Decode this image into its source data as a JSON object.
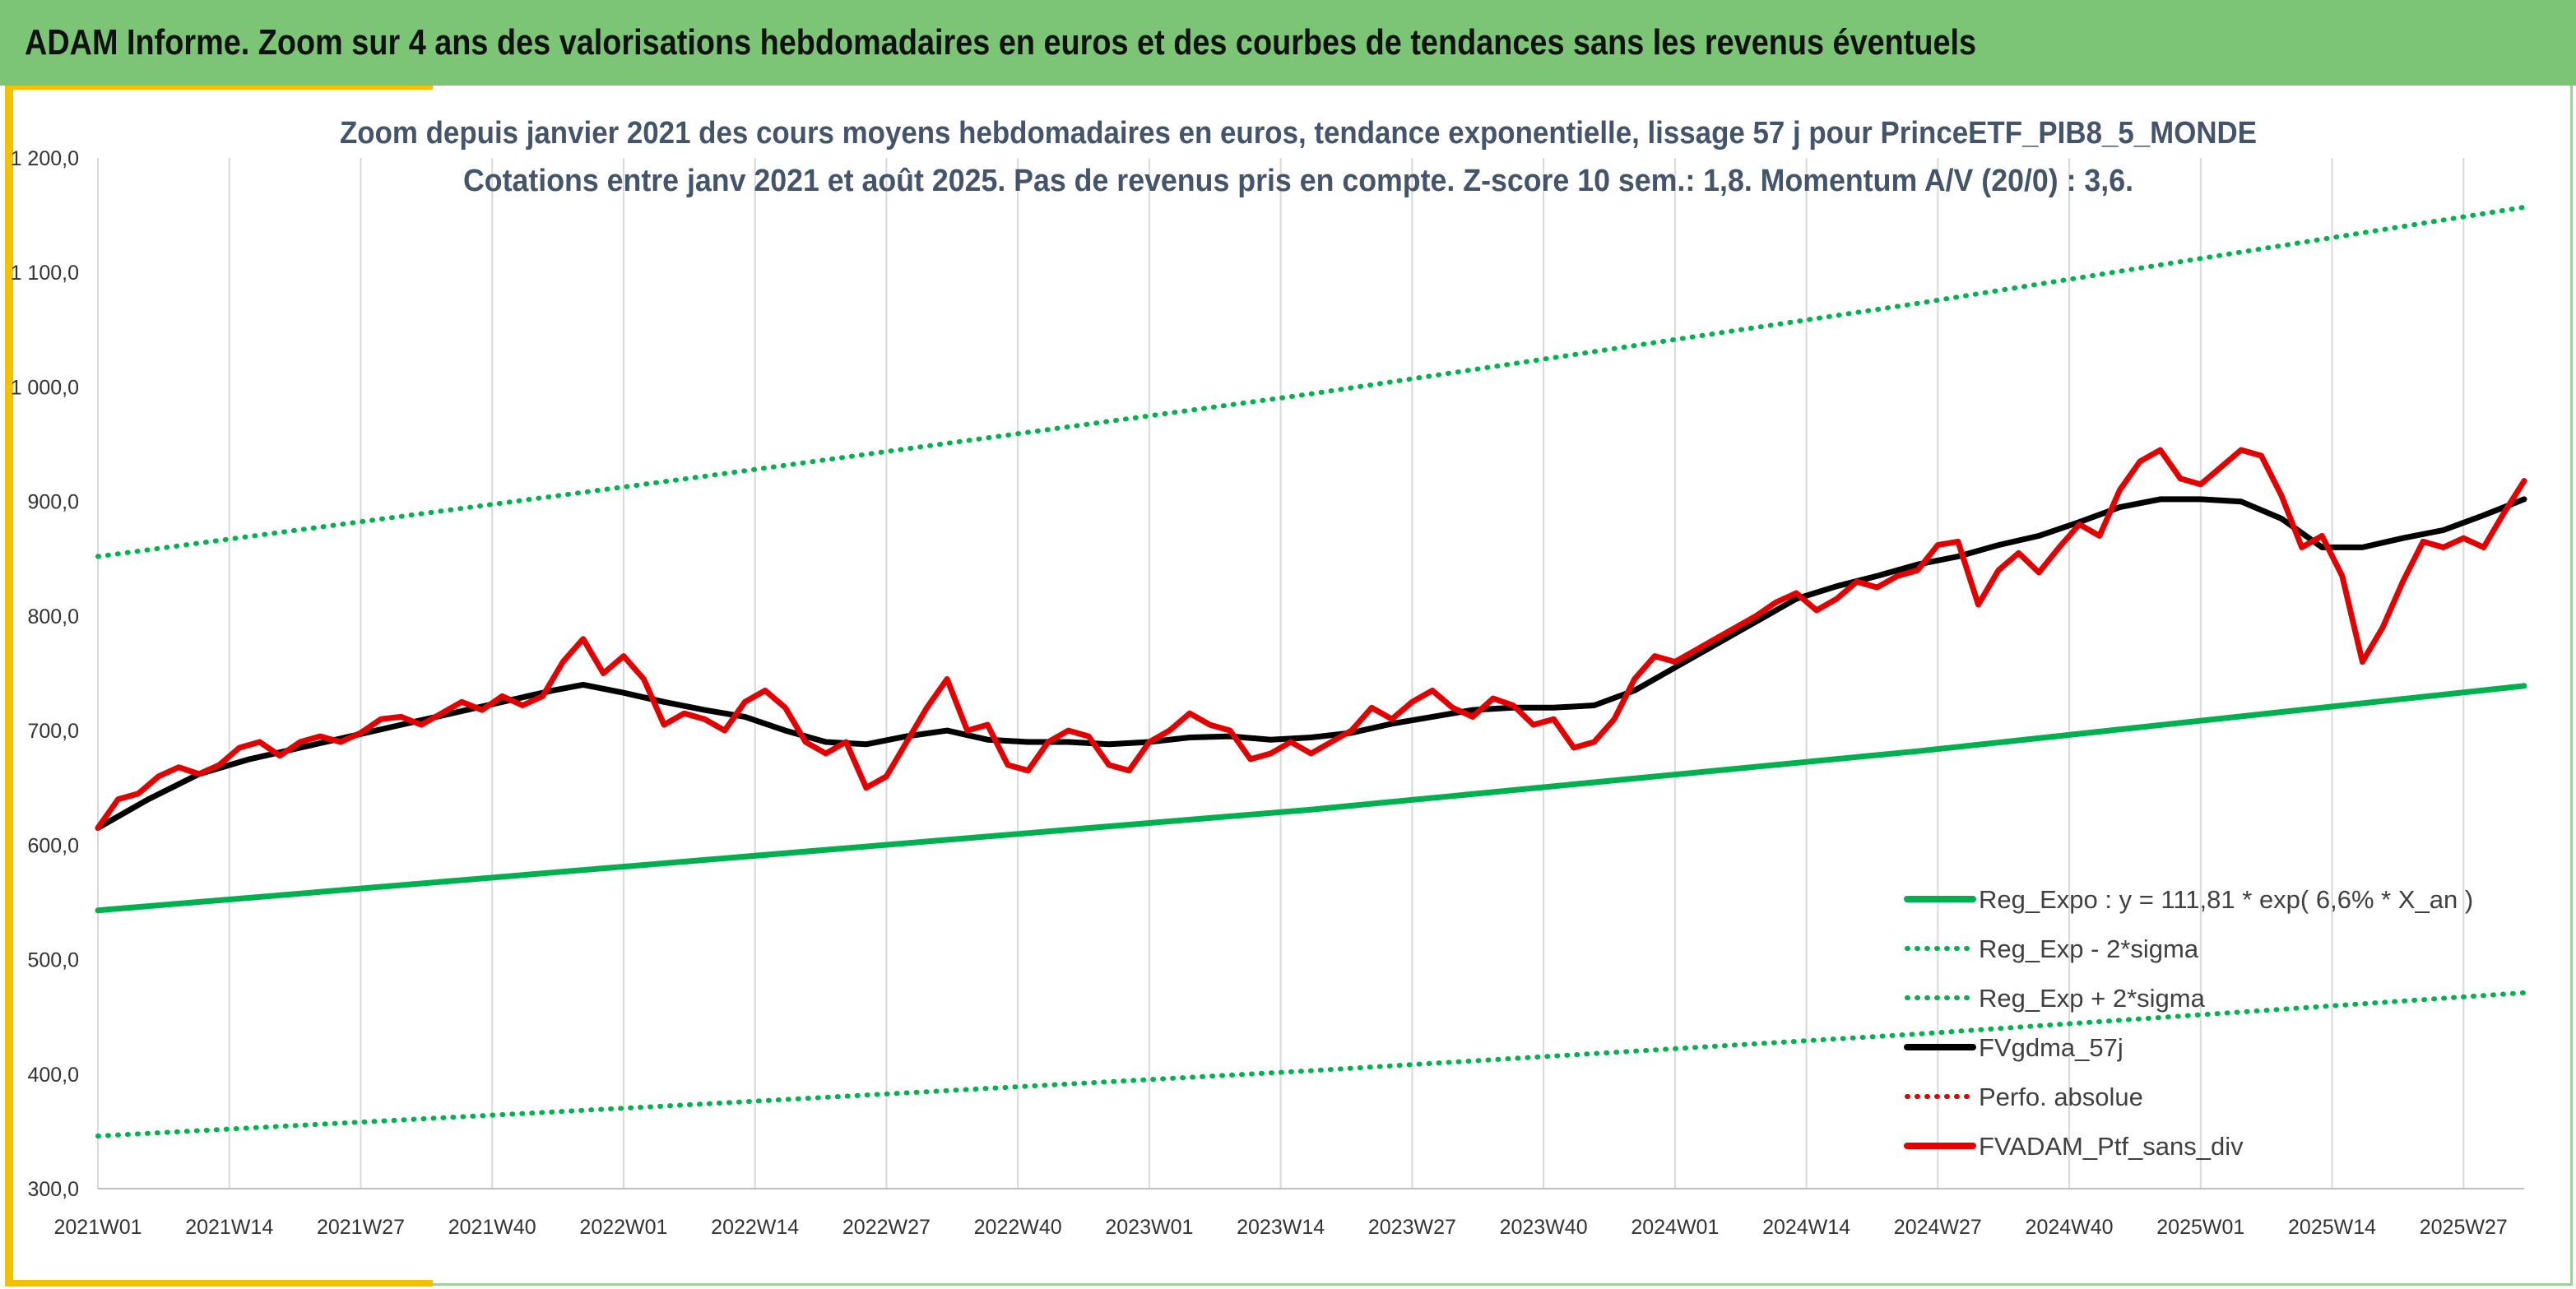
{
  "banner": {
    "title": "ADAM Informe. Zoom sur 4 ans des valorisations hebdomadaires en euros et des courbes de tendances sans les revenus éventuels",
    "color": "#7cc576",
    "accent_color": "#f2c200"
  },
  "chart_data": {
    "type": "line",
    "title_line1": "Zoom depuis janvier 2021 des cours moyens hebdomadaires en euros, tendance exponentielle, lissage 57 j pour PrinceETF_PIB8_5_MONDE",
    "title_line2": "Cotations entre janv 2021 et août 2025. Pas de revenus pris en compte. Z-score 10 sem.: 1,8. Momentum A/V (20/0) : 3,6.",
    "xlabel": "",
    "ylabel": "",
    "ylim": [
      300,
      1200
    ],
    "y_ticks": [
      "300,0",
      "400,0",
      "500,0",
      "600,0",
      "700,0",
      "800,0",
      "900,0",
      "1 000,0",
      "1 100,0",
      "1 200,0"
    ],
    "x_tick_labels": [
      "2021W01",
      "2021W14",
      "2021W27",
      "2021W40",
      "2022W01",
      "2022W14",
      "2022W27",
      "2022W40",
      "2023W01",
      "2023W14",
      "2023W27",
      "2023W40",
      "2024W01",
      "2024W14",
      "2024W27",
      "2024W40",
      "2025W01",
      "2025W14",
      "2025W27"
    ],
    "x_tick_week_index": [
      0,
      13,
      26,
      39,
      52,
      65,
      78,
      91,
      104,
      117,
      130,
      143,
      156,
      169,
      182,
      195,
      208,
      221,
      234
    ],
    "x_range_weeks": [
      0,
      240
    ],
    "grid": "vertical",
    "legend_position": "bottom-right",
    "series": [
      {
        "name": "Reg_Expo : y = 111,81 * exp( 6,6% *  X_an )",
        "style": "solid-thick",
        "color": "#00b050",
        "points": [
          [
            0,
            543
          ],
          [
            60,
            587
          ],
          [
            120,
            631
          ],
          [
            180,
            682
          ],
          [
            240,
            739
          ]
        ]
      },
      {
        "name": "Reg_Exp - 2*sigma",
        "style": "dotted",
        "color": "#00b050",
        "points": [
          [
            0,
            346
          ],
          [
            60,
            374
          ],
          [
            120,
            403
          ],
          [
            180,
            435
          ],
          [
            240,
            471
          ]
        ]
      },
      {
        "name": "Reg_Exp + 2*sigma",
        "style": "dotted",
        "color": "#00b050",
        "points": [
          [
            0,
            852
          ],
          [
            60,
            922
          ],
          [
            120,
            994
          ],
          [
            180,
            1073
          ],
          [
            240,
            1157
          ]
        ]
      },
      {
        "name": "FVgdma_57j",
        "style": "solid-thick",
        "color": "#000000",
        "points": [
          [
            0,
            615
          ],
          [
            5,
            640
          ],
          [
            10,
            662
          ],
          [
            15,
            675
          ],
          [
            20,
            685
          ],
          [
            25,
            695
          ],
          [
            30,
            705
          ],
          [
            35,
            715
          ],
          [
            40,
            725
          ],
          [
            45,
            735
          ],
          [
            48,
            740
          ],
          [
            52,
            733
          ],
          [
            56,
            725
          ],
          [
            60,
            718
          ],
          [
            64,
            712
          ],
          [
            68,
            700
          ],
          [
            72,
            690
          ],
          [
            76,
            688
          ],
          [
            80,
            695
          ],
          [
            84,
            700
          ],
          [
            88,
            692
          ],
          [
            92,
            690
          ],
          [
            96,
            690
          ],
          [
            100,
            688
          ],
          [
            104,
            690
          ],
          [
            108,
            694
          ],
          [
            112,
            695
          ],
          [
            116,
            692
          ],
          [
            120,
            694
          ],
          [
            124,
            698
          ],
          [
            128,
            706
          ],
          [
            132,
            712
          ],
          [
            136,
            718
          ],
          [
            140,
            720
          ],
          [
            144,
            720
          ],
          [
            148,
            722
          ],
          [
            152,
            735
          ],
          [
            156,
            755
          ],
          [
            160,
            775
          ],
          [
            164,
            795
          ],
          [
            168,
            815
          ],
          [
            172,
            826
          ],
          [
            176,
            835
          ],
          [
            180,
            845
          ],
          [
            184,
            852
          ],
          [
            188,
            862
          ],
          [
            192,
            870
          ],
          [
            196,
            882
          ],
          [
            200,
            895
          ],
          [
            204,
            902
          ],
          [
            208,
            902
          ],
          [
            212,
            900
          ],
          [
            216,
            885
          ],
          [
            220,
            860
          ],
          [
            224,
            860
          ],
          [
            228,
            868
          ],
          [
            232,
            875
          ],
          [
            236,
            888
          ],
          [
            240,
            902
          ]
        ]
      },
      {
        "name": "Perfo. absolue",
        "style": "dotted",
        "color": "#e00000",
        "points": []
      },
      {
        "name": "FVADAM_Ptf_sans_div",
        "style": "solid-thick",
        "color": "#e00000",
        "points": [
          [
            0,
            615
          ],
          [
            2,
            640
          ],
          [
            4,
            645
          ],
          [
            6,
            660
          ],
          [
            8,
            668
          ],
          [
            10,
            662
          ],
          [
            12,
            670
          ],
          [
            14,
            685
          ],
          [
            16,
            690
          ],
          [
            18,
            678
          ],
          [
            20,
            690
          ],
          [
            22,
            695
          ],
          [
            24,
            690
          ],
          [
            26,
            698
          ],
          [
            28,
            710
          ],
          [
            30,
            712
          ],
          [
            32,
            705
          ],
          [
            34,
            715
          ],
          [
            36,
            725
          ],
          [
            38,
            718
          ],
          [
            40,
            730
          ],
          [
            42,
            722
          ],
          [
            44,
            730
          ],
          [
            46,
            760
          ],
          [
            48,
            780
          ],
          [
            50,
            750
          ],
          [
            52,
            765
          ],
          [
            54,
            745
          ],
          [
            56,
            705
          ],
          [
            58,
            715
          ],
          [
            60,
            710
          ],
          [
            62,
            700
          ],
          [
            64,
            725
          ],
          [
            66,
            735
          ],
          [
            68,
            720
          ],
          [
            70,
            690
          ],
          [
            72,
            680
          ],
          [
            74,
            690
          ],
          [
            76,
            650
          ],
          [
            78,
            660
          ],
          [
            80,
            690
          ],
          [
            82,
            720
          ],
          [
            84,
            745
          ],
          [
            86,
            700
          ],
          [
            88,
            705
          ],
          [
            90,
            670
          ],
          [
            92,
            665
          ],
          [
            94,
            690
          ],
          [
            96,
            700
          ],
          [
            98,
            695
          ],
          [
            100,
            670
          ],
          [
            102,
            665
          ],
          [
            104,
            690
          ],
          [
            106,
            700
          ],
          [
            108,
            715
          ],
          [
            110,
            705
          ],
          [
            112,
            700
          ],
          [
            114,
            675
          ],
          [
            116,
            680
          ],
          [
            118,
            690
          ],
          [
            120,
            680
          ],
          [
            122,
            690
          ],
          [
            124,
            700
          ],
          [
            126,
            720
          ],
          [
            128,
            710
          ],
          [
            130,
            725
          ],
          [
            132,
            735
          ],
          [
            134,
            720
          ],
          [
            136,
            712
          ],
          [
            138,
            728
          ],
          [
            140,
            722
          ],
          [
            142,
            705
          ],
          [
            144,
            710
          ],
          [
            146,
            685
          ],
          [
            148,
            690
          ],
          [
            150,
            710
          ],
          [
            152,
            745
          ],
          [
            154,
            765
          ],
          [
            156,
            760
          ],
          [
            158,
            770
          ],
          [
            160,
            780
          ],
          [
            162,
            790
          ],
          [
            164,
            800
          ],
          [
            166,
            812
          ],
          [
            168,
            820
          ],
          [
            170,
            805
          ],
          [
            172,
            815
          ],
          [
            174,
            830
          ],
          [
            176,
            825
          ],
          [
            178,
            835
          ],
          [
            180,
            840
          ],
          [
            182,
            862
          ],
          [
            184,
            865
          ],
          [
            186,
            810
          ],
          [
            188,
            840
          ],
          [
            190,
            855
          ],
          [
            192,
            838
          ],
          [
            194,
            860
          ],
          [
            196,
            880
          ],
          [
            198,
            870
          ],
          [
            200,
            910
          ],
          [
            202,
            935
          ],
          [
            204,
            945
          ],
          [
            206,
            920
          ],
          [
            208,
            915
          ],
          [
            210,
            930
          ],
          [
            212,
            945
          ],
          [
            214,
            940
          ],
          [
            216,
            905
          ],
          [
            218,
            860
          ],
          [
            220,
            870
          ],
          [
            222,
            835
          ],
          [
            224,
            760
          ],
          [
            226,
            790
          ],
          [
            228,
            830
          ],
          [
            230,
            865
          ],
          [
            232,
            860
          ],
          [
            234,
            868
          ],
          [
            236,
            860
          ],
          [
            238,
            890
          ],
          [
            240,
            918
          ]
        ]
      }
    ]
  }
}
